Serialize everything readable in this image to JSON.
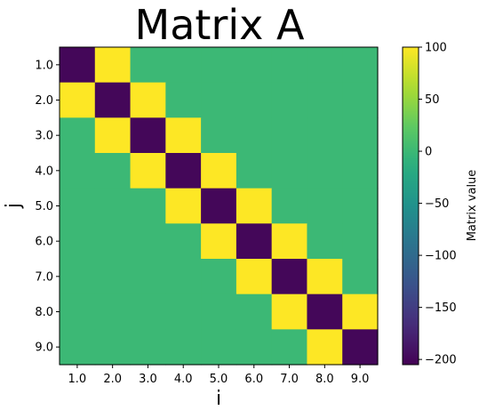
{
  "chart_data": {
    "type": "heatmap",
    "title": "Matrix A",
    "xlabel": "i",
    "ylabel": "j",
    "x_ticks": [
      "1.0",
      "2.0",
      "3.0",
      "4.0",
      "5.0",
      "6.0",
      "7.0",
      "8.0",
      "9.0"
    ],
    "y_ticks": [
      "1.0",
      "2.0",
      "3.0",
      "4.0",
      "5.0",
      "6.0",
      "7.0",
      "8.0",
      "9.0"
    ],
    "values": [
      [
        -200,
        100,
        0,
        0,
        0,
        0,
        0,
        0,
        0
      ],
      [
        100,
        -200,
        100,
        0,
        0,
        0,
        0,
        0,
        0
      ],
      [
        0,
        100,
        -200,
        100,
        0,
        0,
        0,
        0,
        0
      ],
      [
        0,
        0,
        100,
        -200,
        100,
        0,
        0,
        0,
        0
      ],
      [
        0,
        0,
        0,
        100,
        -200,
        100,
        0,
        0,
        0
      ],
      [
        0,
        0,
        0,
        0,
        100,
        -200,
        100,
        0,
        0
      ],
      [
        0,
        0,
        0,
        0,
        0,
        100,
        -200,
        100,
        0
      ],
      [
        0,
        0,
        0,
        0,
        0,
        0,
        100,
        -200,
        100
      ],
      [
        0,
        0,
        0,
        0,
        0,
        0,
        0,
        100,
        -200
      ]
    ],
    "colorbar": {
      "label": "Matrix value",
      "range": [
        -205,
        100
      ],
      "ticks": [
        100,
        50,
        0,
        -50,
        -100,
        -150,
        -200
      ],
      "tick_labels": [
        "100",
        "50",
        "0",
        "−50",
        "−100",
        "−150",
        "−200"
      ],
      "colormap": "viridis"
    },
    "grid": false,
    "colors": {
      "low": "#440154",
      "mid": "#35b779",
      "high": "#fde725"
    }
  }
}
